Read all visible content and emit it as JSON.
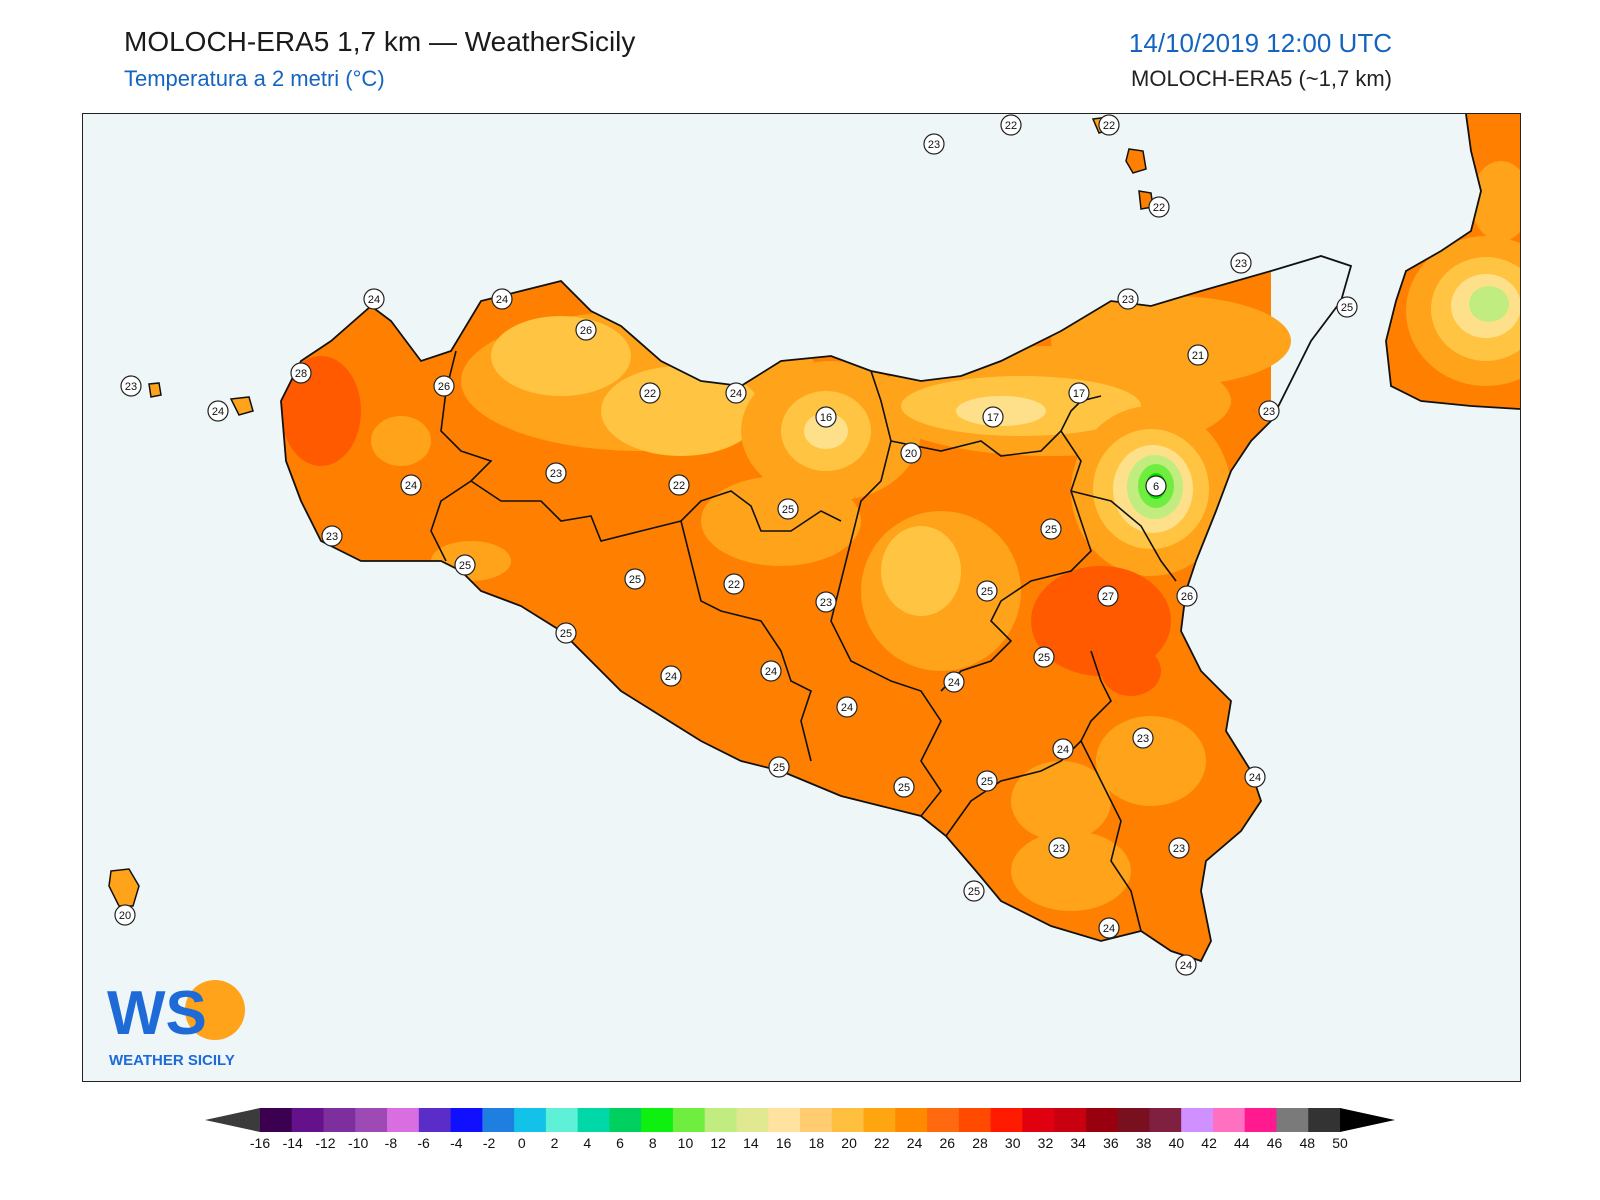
{
  "header": {
    "title": "MOLOCH-ERA5 1,7 km — WeatherSicily",
    "subtitle": "Temperatura a 2 metri (°C)",
    "datetime": "14/10/2019 12:00 UTC",
    "model": "MOLOCH-ERA5 (~1,7 km)"
  },
  "logo": {
    "text": "WEATHER SICILY",
    "initials": "WS"
  },
  "colors": {
    "sea": "#eef6f8",
    "warm_dark": "#ff5a00",
    "warm": "#ff8000",
    "warm_light": "#ffa31a",
    "mild": "#ffc542",
    "cool": "#ffe08a",
    "green": "#00e000"
  },
  "colorbar": {
    "labels": [
      "-16",
      "-14",
      "-12",
      "-10",
      "-8",
      "-6",
      "-4",
      "-2",
      "0",
      "2",
      "4",
      "6",
      "8",
      "10",
      "12",
      "14",
      "16",
      "18",
      "20",
      "22",
      "24",
      "26",
      "28",
      "30",
      "32",
      "34",
      "36",
      "38",
      "40",
      "42",
      "44",
      "46",
      "48",
      "50"
    ],
    "colors": [
      "#3b0050",
      "#64118a",
      "#7e2f9e",
      "#9d4ab4",
      "#d96ee0",
      "#5a2dc8",
      "#1010ff",
      "#1f7fe0",
      "#12c2e8",
      "#5ff0d8",
      "#00d8a8",
      "#00d060",
      "#10f010",
      "#70ee40",
      "#c0ec80",
      "#e0e890",
      "#ffe2a0",
      "#ffcc70",
      "#ffc040",
      "#ffa510",
      "#ff8a00",
      "#ff6a10",
      "#ff4a00",
      "#ff1a00",
      "#e00010",
      "#c80010",
      "#980010",
      "#781020",
      "#802040",
      "#d090ff",
      "#ff70c0",
      "#ff1a90",
      "#7a7a7a",
      "#333333"
    ]
  },
  "station_values": [
    "23",
    "22",
    "22",
    "23",
    "23",
    "22",
    "25",
    "24",
    "24",
    "23",
    "24",
    "26",
    "28",
    "26",
    "22",
    "24",
    "16",
    "17",
    "21",
    "17",
    "20",
    "23",
    "6",
    "24",
    "23",
    "23",
    "22",
    "25",
    "25",
    "25",
    "22",
    "25",
    "27",
    "26",
    "25",
    "25",
    "23",
    "25",
    "24",
    "24",
    "24",
    "23",
    "24",
    "24",
    "25",
    "25",
    "25",
    "24",
    "23",
    "23",
    "25",
    "24",
    "24",
    "20"
  ]
}
